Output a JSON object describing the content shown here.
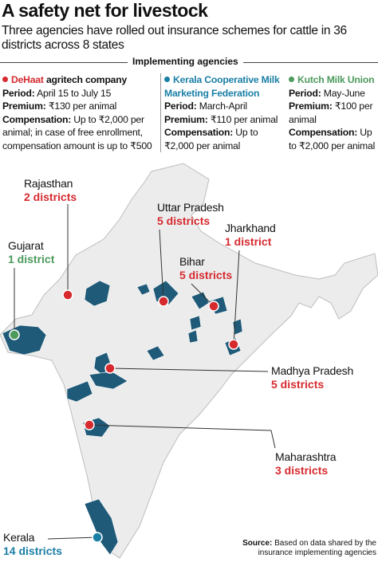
{
  "header": {
    "title": "A safety net for livestock",
    "subtitle": "Three agencies have rolled out insurance schemes for cattle in 36 districts across 8 states"
  },
  "agencies": {
    "heading": "Implementing agencies",
    "items": [
      {
        "name": "DeHaat",
        "name_rest": "agritech company",
        "fields": [
          {
            "label": "Period:",
            "text": "April 15 to July 15"
          },
          {
            "label": "Premium:",
            "text": "₹130 per animal"
          },
          {
            "label": "Compensation:",
            "text": "Up to ₹2,000 per animal; in case of free enrollment, compensation amount is up to ₹500"
          }
        ]
      },
      {
        "name": "Kerala Cooperative Milk Marketing Federation",
        "fields": [
          {
            "label": "Period:",
            "text": "March-April"
          },
          {
            "label": "Premium:",
            "text": "₹110 per animal"
          },
          {
            "label": "Compensation:",
            "text": "Up to ₹2,000 per animal"
          }
        ]
      },
      {
        "name": "Kutch Milk Union",
        "fields": [
          {
            "label": "Period:",
            "text": "May-June"
          },
          {
            "label": "Premium:",
            "text": "₹100 per animal"
          },
          {
            "label": "Compensation:",
            "text": "Up to ₹2,000 per animal"
          }
        ]
      }
    ]
  },
  "regions": [
    {
      "state": "Rajasthan",
      "districts": "2 districts"
    },
    {
      "state": "Uttar Pradesh",
      "districts": "5 districts"
    },
    {
      "state": "Jharkhand",
      "districts": "1 district"
    },
    {
      "state": "Gujarat",
      "districts": "1 district"
    },
    {
      "state": "Bihar",
      "districts": "5 districts"
    },
    {
      "state": "Madhya Pradesh",
      "districts": "5 districts"
    },
    {
      "state": "Maharashtra",
      "districts": "3 districts"
    },
    {
      "state": "Kerala",
      "districts": "14 districts"
    }
  ],
  "source": {
    "label": "Source:",
    "text": "Based on data shared by the insurance implementing agencies"
  }
}
